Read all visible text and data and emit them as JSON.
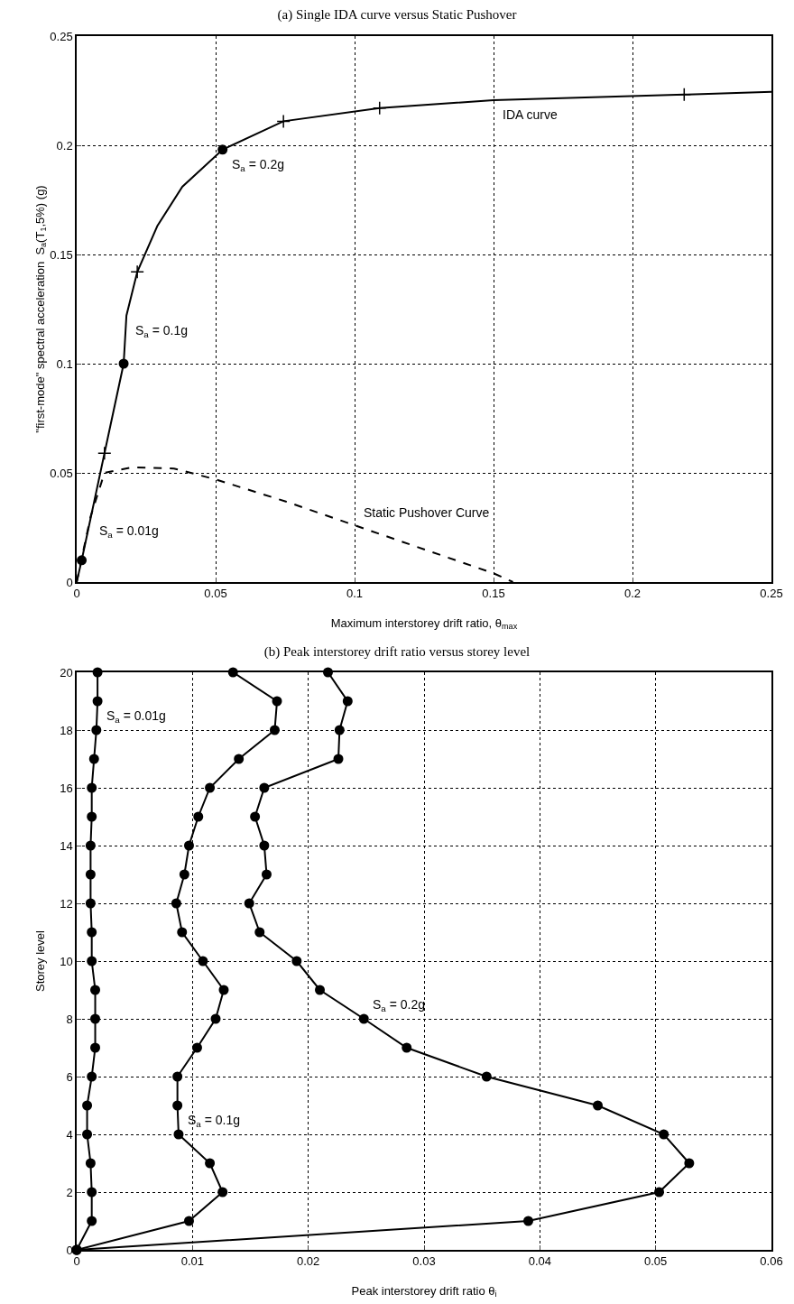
{
  "chart_data": [
    {
      "type": "line",
      "title": "(a) Single IDA curve versus Static Pushover",
      "xlabel": "Maximum interstorey drift ratio, θ$_{max}$",
      "ylabel": "\"first-mode\" spectral acceleration  S$_{a}$(T$_{1}$,5%) (g)",
      "xlim": [
        0,
        0.25
      ],
      "xticks": [
        0,
        0.05,
        0.1,
        0.15,
        0.2,
        0.25
      ],
      "ylim": [
        0,
        0.25
      ],
      "yticks": [
        0,
        0.05,
        0.1,
        0.15,
        0.2,
        0.25
      ],
      "grid": true,
      "series": [
        {
          "type": "line",
          "color": "#000000",
          "marker": "none",
          "x": [
            0,
            0.0018,
            0.01,
            0.0169,
            0.0179,
            0.0218,
            0.029,
            0.038,
            0.0525,
            0.0744,
            0.109,
            0.15,
            0.2186,
            0.25
          ],
          "values": [
            0,
            0.01,
            0.059,
            0.1,
            0.122,
            0.142,
            0.163,
            0.181,
            0.198,
            0.211,
            0.217,
            0.2207,
            0.2232,
            0.2245
          ]
        },
        {
          "type": "line",
          "color": "#000000",
          "marker": "none",
          "line_style": "dashed",
          "x": [
            0,
            0.005,
            0.01,
            0.02,
            0.035,
            0.05,
            0.075,
            0.1,
            0.125,
            0.15,
            0.157
          ],
          "values": [
            0,
            0.03,
            0.05,
            0.0525,
            0.052,
            0.047,
            0.037,
            0.026,
            0.015,
            0.004,
            0
          ]
        },
        {
          "type": "scatter",
          "color": "#000000",
          "marker": "cross",
          "x": [
            0.01,
            0.0218,
            0.0744,
            0.109,
            0.2186
          ],
          "values": [
            0.059,
            0.142,
            0.211,
            0.217,
            0.2232
          ]
        },
        {
          "type": "scatter",
          "color": "#000000",
          "marker": "circle",
          "x": [
            0.0018,
            0.0169,
            0.0525
          ],
          "values": [
            0.01,
            0.1,
            0.198
          ]
        }
      ],
      "annotations": [
        {
          "text": "S$_{a}$ = 0.2g",
          "x": 0.0525,
          "y": 0.198
        },
        {
          "text": "S$_{a}$ = 0.1g",
          "x": 0.0179,
          "y": 0.122
        },
        {
          "text": "S$_{a}$ = 0.01g",
          "x": 0.005,
          "y": 0.03
        },
        {
          "text": "IDA curve",
          "x": 0.15,
          "y": 0.2207
        },
        {
          "text": "Static Pushover Curve",
          "x": 0.1,
          "y": 0.026
        }
      ]
    },
    {
      "type": "line",
      "title": "(b) Peak interstorey drift ratio versus storey level",
      "xlabel": "Peak interstorey drift ratio θ$_{i}$",
      "ylabel": "Storey level",
      "xlim": [
        0,
        0.06
      ],
      "xticks": [
        0,
        0.01,
        0.02,
        0.03,
        0.04,
        0.05,
        0.06
      ],
      "ylim": [
        0,
        20
      ],
      "yticks": [
        0,
        2,
        4,
        6,
        8,
        10,
        12,
        14,
        16,
        18,
        20
      ],
      "grid": true,
      "marker": "circle",
      "series": [
        {
          "color": "#000000",
          "x": [
            0,
            0.0013,
            0.0013,
            0.0012,
            0.0009,
            0.0009,
            0.0013,
            0.0016,
            0.0016,
            0.0016,
            0.0013,
            0.0013,
            0.0012,
            0.0012,
            0.0012,
            0.0013,
            0.0013,
            0.0015,
            0.0017,
            0.0018,
            0.0018
          ],
          "values": [
            0,
            1,
            2,
            3,
            4,
            5,
            6,
            7,
            8,
            9,
            10,
            11,
            12,
            13,
            14,
            15,
            16,
            17,
            18,
            19,
            20
          ]
        },
        {
          "color": "#000000",
          "x": [
            0,
            0.0097,
            0.0126,
            0.0115,
            0.0088,
            0.0087,
            0.0087,
            0.0104,
            0.012,
            0.0127,
            0.0109,
            0.0091,
            0.0086,
            0.0093,
            0.0097,
            0.0105,
            0.0115,
            0.014,
            0.0171,
            0.0173,
            0.0135
          ],
          "values": [
            0,
            1,
            2,
            3,
            4,
            5,
            6,
            7,
            8,
            9,
            10,
            11,
            12,
            13,
            14,
            15,
            16,
            17,
            18,
            19,
            20
          ]
        },
        {
          "color": "#000000",
          "x": [
            0,
            0.039,
            0.0503,
            0.0529,
            0.0507,
            0.045,
            0.0354,
            0.0285,
            0.0248,
            0.021,
            0.019,
            0.0158,
            0.0149,
            0.0164,
            0.0162,
            0.0154,
            0.0162,
            0.0226,
            0.0227,
            0.0234,
            0.0217
          ],
          "values": [
            0,
            1,
            2,
            3,
            4,
            5,
            6,
            7,
            8,
            9,
            10,
            11,
            12,
            13,
            14,
            15,
            16,
            17,
            18,
            19,
            20
          ]
        }
      ],
      "annotations": [
        {
          "text": "S$_{a}$ = 0.01g",
          "x": 0.0018,
          "y": 19
        },
        {
          "text": "S$_{a}$ = 0.1g",
          "x": 0.0088,
          "y": 4
        },
        {
          "text": "S$_{a}$ = 0.2g",
          "x": 0.0248,
          "y": 8
        }
      ]
    }
  ]
}
